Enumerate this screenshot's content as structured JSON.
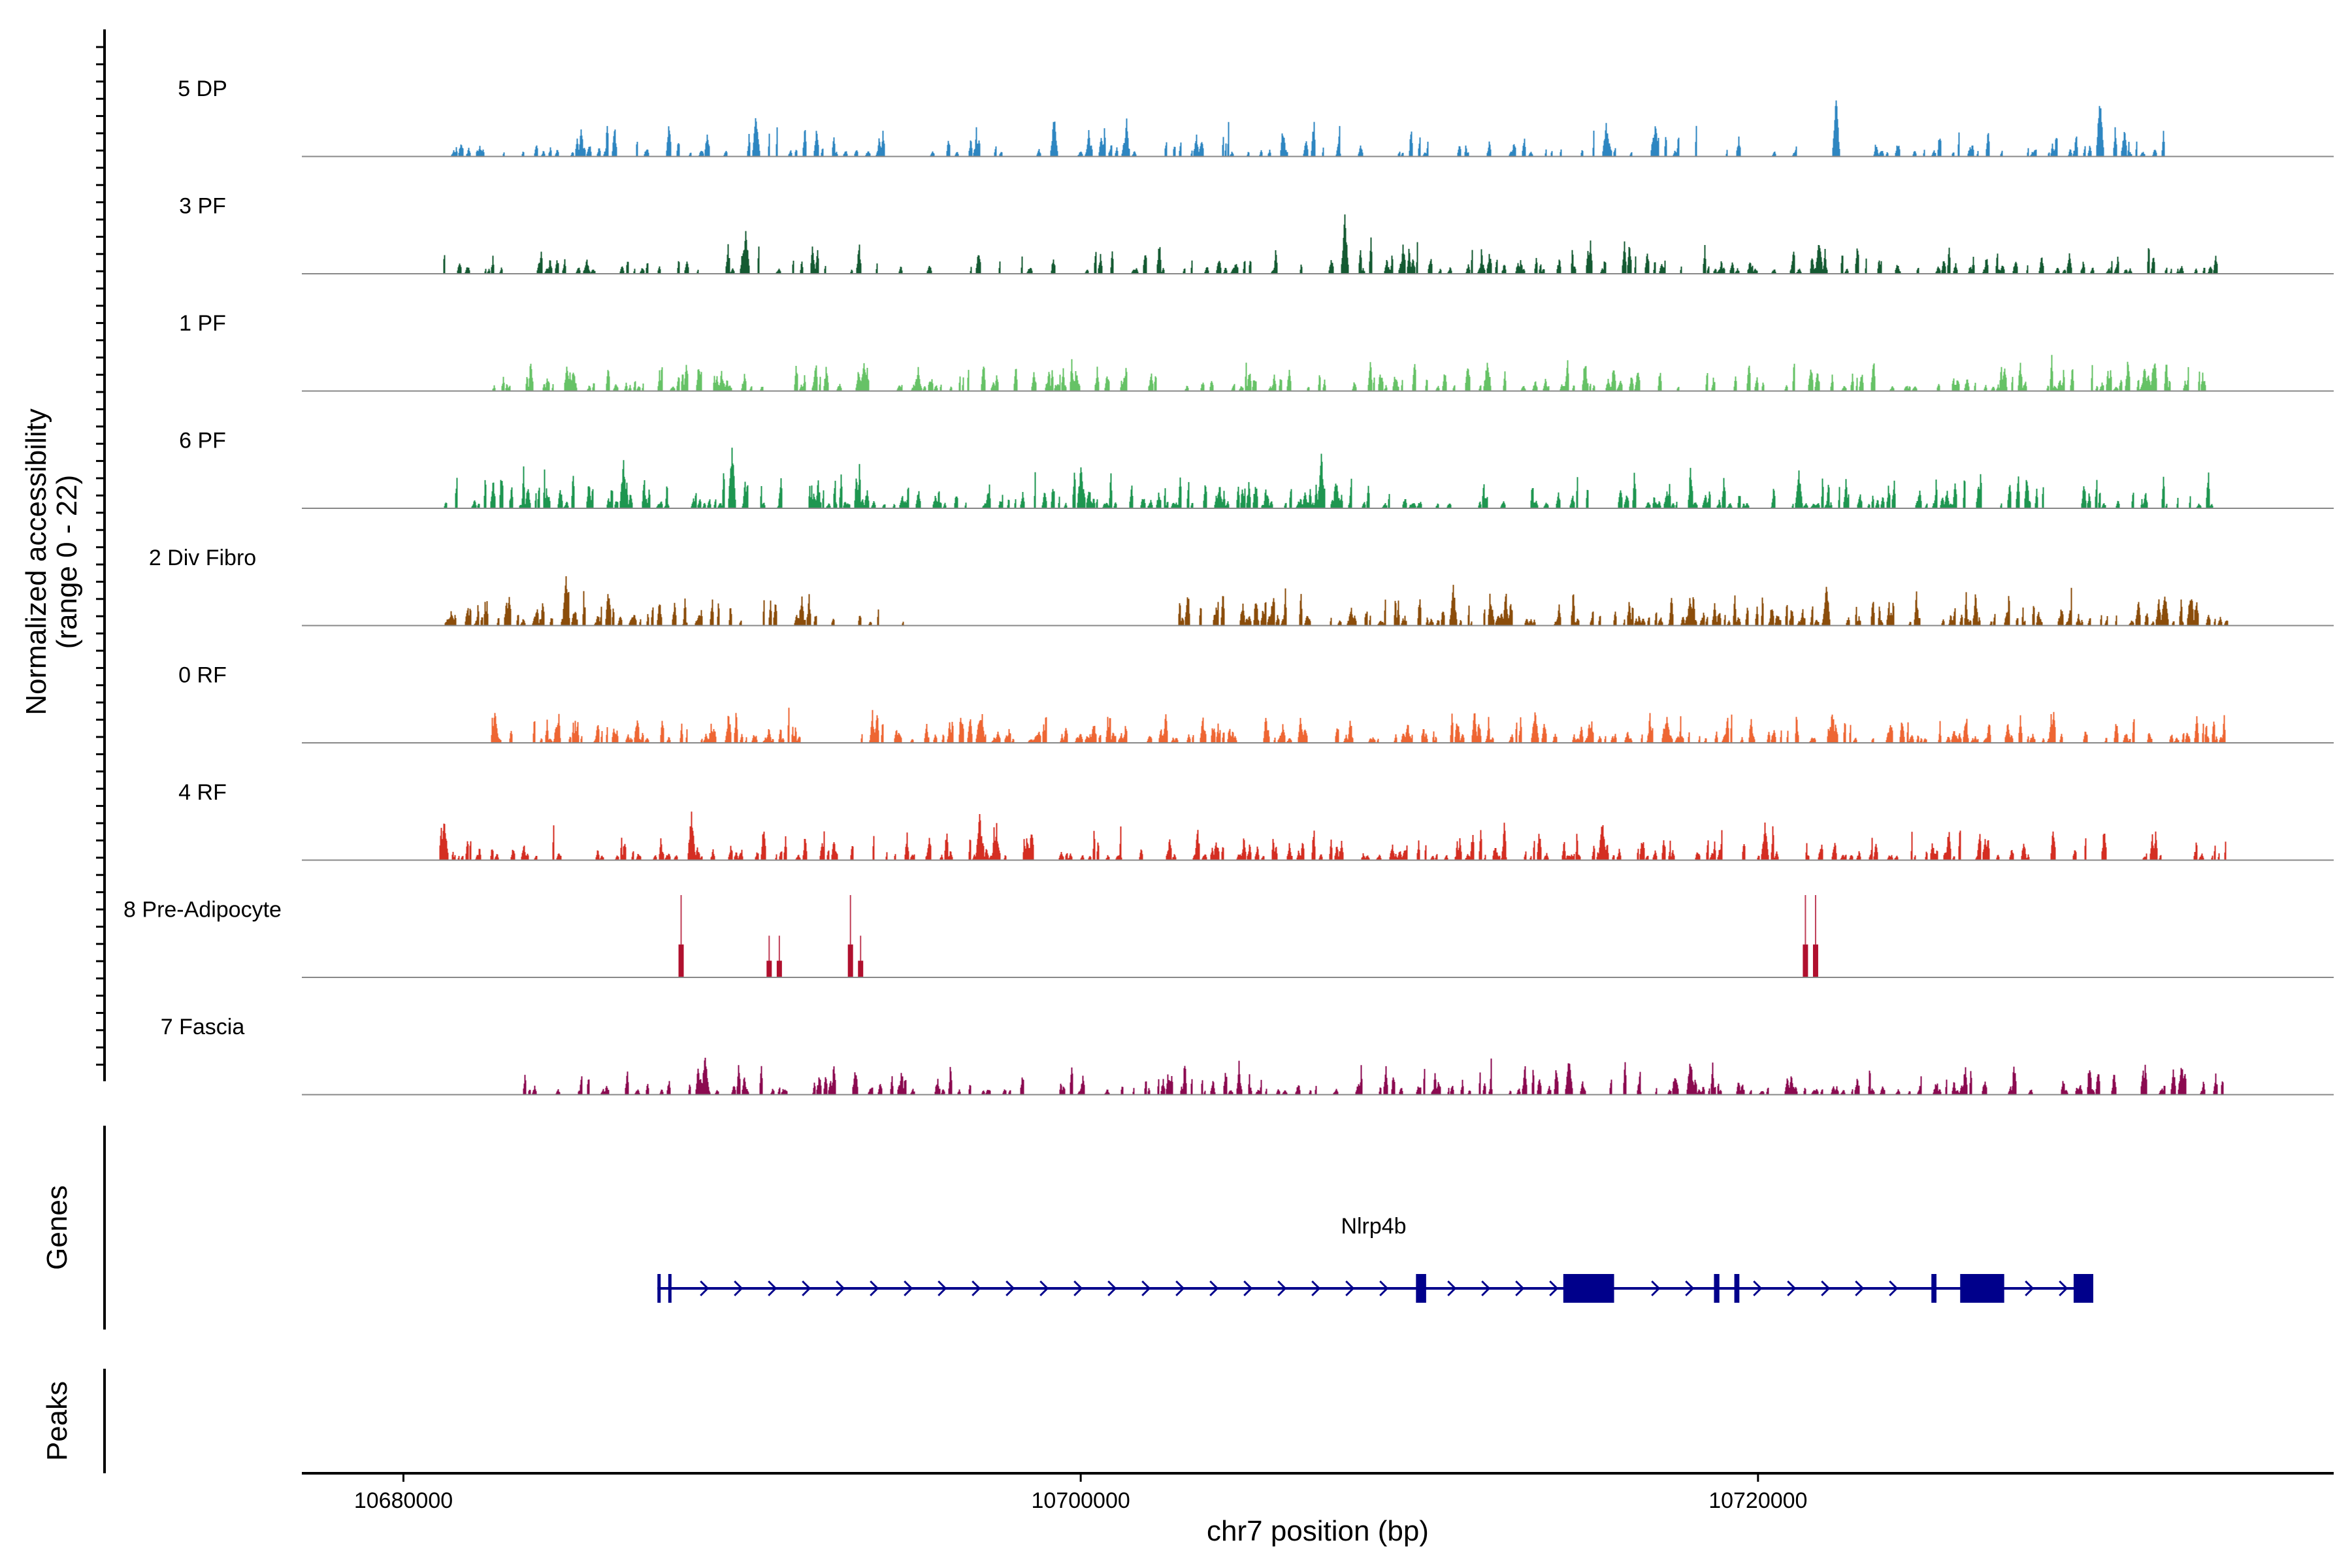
{
  "chart_data": {
    "type": "area",
    "subtype": "coverage-tracks",
    "xlabel": "chr7 position (bp)",
    "ylabel_line1": "Normalized accessibility",
    "ylabel_line2": "(range 0 - 22)",
    "y_range": [
      0,
      22
    ],
    "xlim": [
      10677000,
      10737000
    ],
    "x_ticks": [
      10680000,
      10700000,
      10720000
    ],
    "x_tick_labels": [
      "10680000",
      "10700000",
      "10720000"
    ],
    "tracks": [
      {
        "name": "5 DP",
        "color": "#2E86C1",
        "seed": 11,
        "density": 0.35,
        "maxh": 0.32,
        "intervals": [
          [
            10681000,
            10732300
          ]
        ],
        "peaks": [
          [
            10690400,
            0.42
          ],
          [
            10699200,
            0.38
          ],
          [
            10722300,
            0.55
          ],
          [
            10730100,
            0.6
          ],
          [
            10715500,
            0.32
          ]
        ]
      },
      {
        "name": "3 PF",
        "color": "#145A32",
        "seed": 23,
        "density": 0.35,
        "maxh": 0.3,
        "intervals": [
          [
            10681000,
            10734000
          ]
        ],
        "peaks": [
          [
            10690100,
            0.45
          ],
          [
            10707800,
            0.58
          ],
          [
            10721800,
            0.32
          ]
        ]
      },
      {
        "name": "1 PF",
        "color": "#66C266",
        "seed": 37,
        "density": 0.5,
        "maxh": 0.3,
        "intervals": [
          [
            10682500,
            10733500
          ]
        ],
        "peaks": [
          [
            10685000,
            0.2
          ],
          [
            10693600,
            0.3
          ],
          [
            10712000,
            0.28
          ]
        ]
      },
      {
        "name": "6 PF",
        "color": "#1E9650",
        "seed": 41,
        "density": 0.55,
        "maxh": 0.38,
        "intervals": [
          [
            10681000,
            10733700
          ]
        ],
        "peaks": [
          [
            10689700,
            0.62
          ],
          [
            10686500,
            0.48
          ],
          [
            10700000,
            0.4
          ],
          [
            10707100,
            0.52
          ],
          [
            10721200,
            0.35
          ]
        ]
      },
      {
        "name": "2 Div Fibro",
        "color": "#8B4D0B",
        "seed": 53,
        "density": 0.6,
        "maxh": 0.32,
        "intervals": [
          [
            10681000,
            10694800
          ],
          [
            10702500,
            10734000
          ]
        ],
        "peaks": [
          [
            10684800,
            0.45
          ],
          [
            10711000,
            0.38
          ],
          [
            10722000,
            0.42
          ],
          [
            10732000,
            0.36
          ]
        ]
      },
      {
        "name": "0 RF",
        "color": "#EE6633",
        "seed": 67,
        "density": 0.6,
        "maxh": 0.28,
        "intervals": [
          [
            10682500,
            10692000
          ],
          [
            10693500,
            10734000
          ]
        ],
        "peaks": [
          [
            10682700,
            0.32
          ],
          [
            10697000,
            0.25
          ],
          [
            10713400,
            0.3
          ],
          [
            10717300,
            0.26
          ]
        ]
      },
      {
        "name": "4 RF",
        "color": "#D42E22",
        "seed": 71,
        "density": 0.5,
        "maxh": 0.32,
        "intervals": [
          [
            10681000,
            10734000
          ]
        ],
        "peaks": [
          [
            10681200,
            0.4
          ],
          [
            10688500,
            0.48
          ],
          [
            10697000,
            0.45
          ],
          [
            10715400,
            0.38
          ],
          [
            10720200,
            0.35
          ]
        ]
      },
      {
        "name": "8 Pre-Adipocyte",
        "color": "#B0102E",
        "seed": 0,
        "density": 0,
        "maxh": 0,
        "intervals": [],
        "bars": [
          [
            10688200,
            0.75
          ],
          [
            10690800,
            0.38
          ],
          [
            10691100,
            0.38
          ],
          [
            10693200,
            0.75
          ],
          [
            10693500,
            0.38
          ],
          [
            10721400,
            0.75
          ],
          [
            10721700,
            0.75
          ]
        ]
      },
      {
        "name": "7 Fascia",
        "color": "#8B0A50",
        "seed": 89,
        "density": 0.5,
        "maxh": 0.3,
        "intervals": [
          [
            10683500,
            10734000
          ]
        ],
        "peaks": [
          [
            10688900,
            0.42
          ],
          [
            10714400,
            0.36
          ],
          [
            10718000,
            0.34
          ],
          [
            10732500,
            0.3
          ]
        ]
      }
    ],
    "gene": {
      "name": "Nlrp4b",
      "strand": "+",
      "start": 10687500,
      "end": 10729800,
      "exons": [
        [
          10687500,
          10687550
        ],
        [
          10687820,
          10687900
        ],
        [
          10709900,
          10710200
        ],
        [
          10714250,
          10715750
        ],
        [
          10718700,
          10718860
        ],
        [
          10719300,
          10719450
        ],
        [
          10725120,
          10725270
        ],
        [
          10725970,
          10727270
        ],
        [
          10729320,
          10729900
        ]
      ],
      "color": "#00008B"
    },
    "panels": {
      "genes": "Genes",
      "peaks": "Peaks"
    }
  }
}
